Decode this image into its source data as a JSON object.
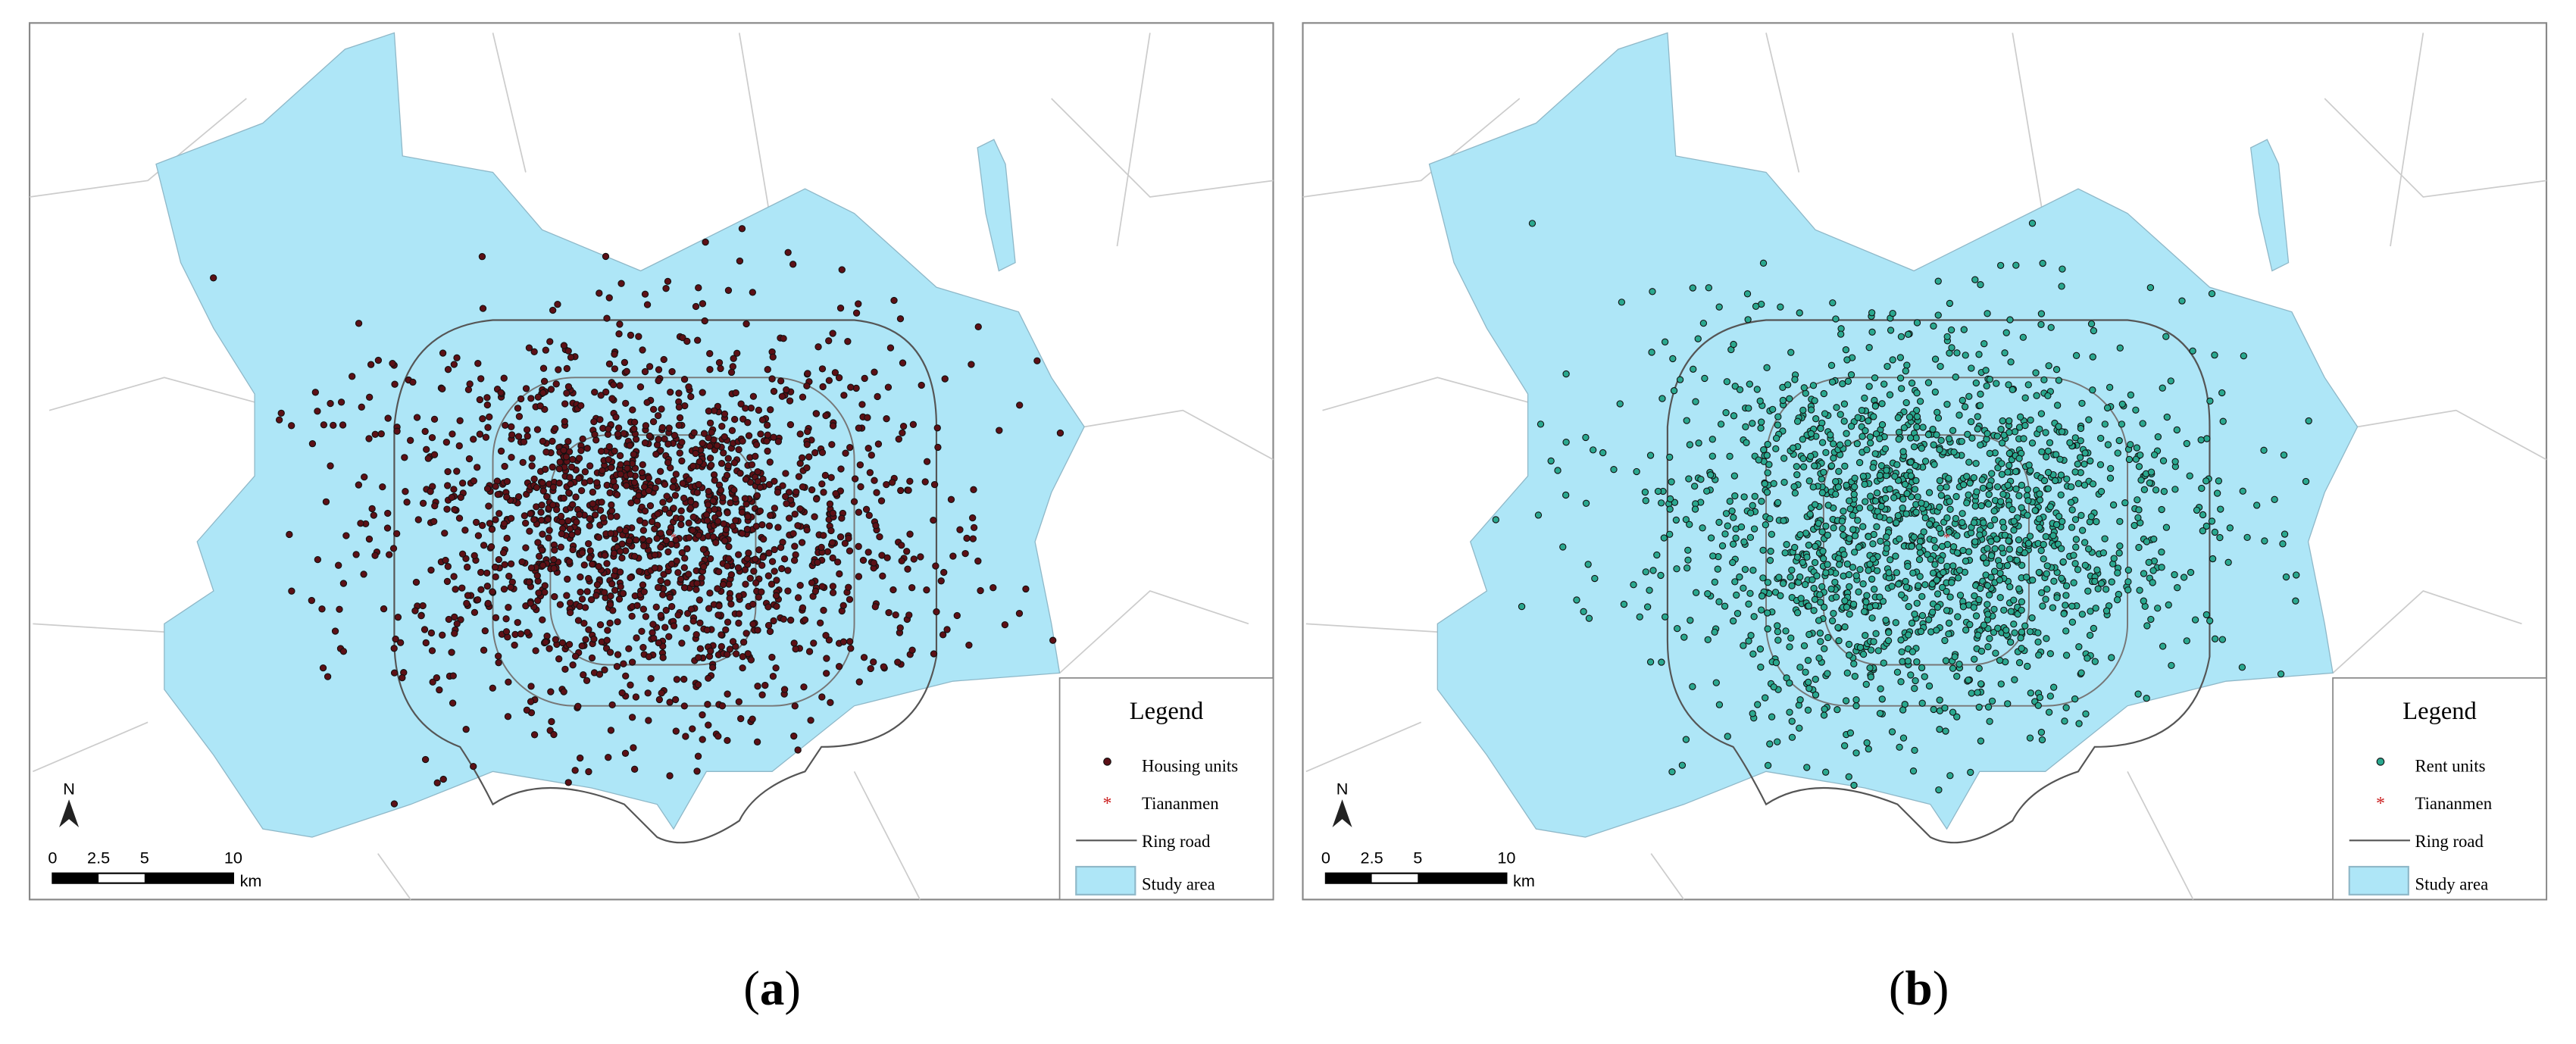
{
  "panels": [
    {
      "legend": {
        "title": "Legend",
        "items": [
          "Housing units",
          "Tiananmen",
          "Ring road",
          "Study area"
        ]
      },
      "scale_bar": {
        "labels": [
          "0",
          "2.5",
          "5",
          "10"
        ],
        "unit": "km"
      },
      "north": "N",
      "caption": [
        "(",
        "a",
        ")"
      ],
      "point_color": "#5c1016"
    },
    {
      "legend": {
        "title": "Legend",
        "items": [
          "Rent units",
          "Tiananmen",
          "Ring road",
          "Study area"
        ]
      },
      "scale_bar": {
        "labels": [
          "0",
          "2.5",
          "5",
          "10"
        ],
        "unit": "km"
      },
      "north": "N",
      "caption": [
        "(",
        "b",
        ")"
      ],
      "point_color": "#2aa88f"
    }
  ]
}
